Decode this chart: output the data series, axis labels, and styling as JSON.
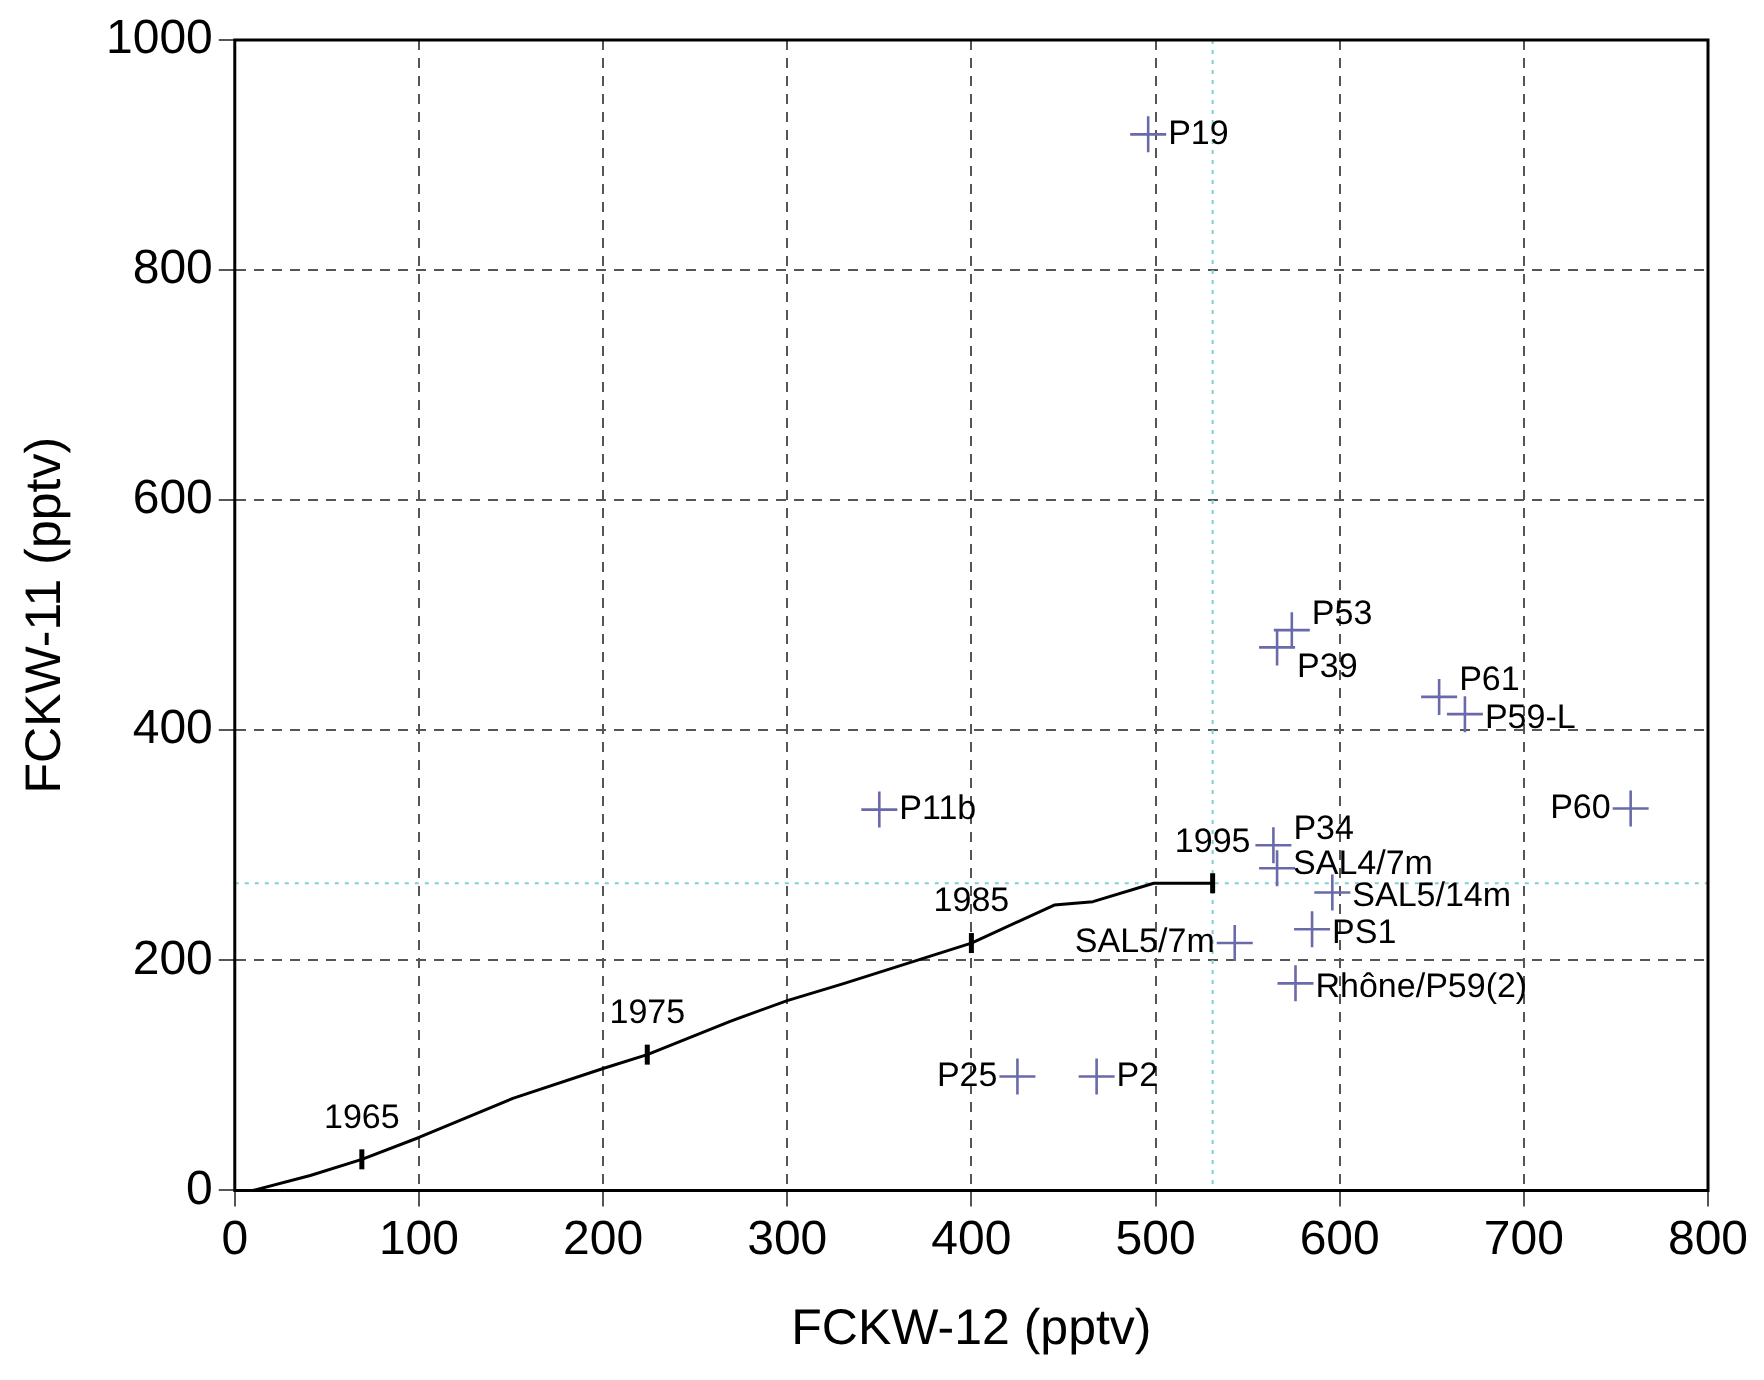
{
  "chart_data": {
    "type": "scatter",
    "xlabel": "FCKW-12 (pptv)",
    "ylabel": "FCKW-11 (pptv)",
    "xlim": [
      0,
      800
    ],
    "xticks": [
      0,
      100,
      200,
      300,
      400,
      500,
      600,
      700,
      800
    ],
    "ylim": [
      0,
      1000
    ],
    "yticks": [
      0,
      200,
      400,
      600,
      800,
      1000
    ],
    "grid": true,
    "legend": false,
    "series": [
      {
        "type": "line",
        "color": "#000000",
        "marker": "none",
        "line_style": "solid",
        "x": [
          10,
          41,
          69,
          100,
          151,
          200,
          224,
          269,
          300,
          331,
          400,
          445,
          466,
          499,
          531
        ],
        "values": [
          0,
          13,
          27,
          46,
          80,
          106,
          118,
          147,
          165,
          180,
          215,
          248,
          251,
          267,
          267
        ]
      },
      {
        "type": "scatter",
        "color": "#6a6aaa",
        "marker": "cross",
        "x": [
          496,
          574,
          566,
          654,
          668,
          350,
          758,
          564,
          566,
          596,
          585,
          543,
          576,
          425,
          468
        ],
        "values": [
          918,
          487,
          472,
          429,
          414,
          331,
          332,
          300,
          280,
          259,
          227,
          215,
          180,
          99,
          99
        ]
      }
    ],
    "ref_lines": [
      {
        "axis": "x",
        "value": 531,
        "color": "#7fd0d0",
        "line_style": "dotted"
      },
      {
        "axis": "y",
        "value": 267,
        "color": "#7fd0d0",
        "line_style": "dotted"
      }
    ],
    "annotations": [
      {
        "text": "1965",
        "x": 69,
        "y": 27
      },
      {
        "text": "1975",
        "x": 224,
        "y": 118
      },
      {
        "text": "1985",
        "x": 400,
        "y": 215
      },
      {
        "text": "1995",
        "x": 531,
        "y": 267
      },
      {
        "text": "P19",
        "x": 496,
        "y": 918
      },
      {
        "text": "P53",
        "x": 574,
        "y": 487
      },
      {
        "text": "P39",
        "x": 566,
        "y": 472
      },
      {
        "text": "P61",
        "x": 654,
        "y": 429
      },
      {
        "text": "P59-L",
        "x": 668,
        "y": 414
      },
      {
        "text": "P11b",
        "x": 350,
        "y": 331
      },
      {
        "text": "P60",
        "x": 758,
        "y": 332
      },
      {
        "text": "P34",
        "x": 564,
        "y": 300
      },
      {
        "text": "SAL4/7m",
        "x": 566,
        "y": 280
      },
      {
        "text": "SAL5/14m",
        "x": 596,
        "y": 259
      },
      {
        "text": "PS1",
        "x": 585,
        "y": 227
      },
      {
        "text": "SAL5/7m",
        "x": 543,
        "y": 215
      },
      {
        "text": "Rhône/P59(2)",
        "x": 576,
        "y": 180
      },
      {
        "text": "P25",
        "x": 425,
        "y": 99
      },
      {
        "text": "P2",
        "x": 468,
        "y": 99
      }
    ]
  }
}
